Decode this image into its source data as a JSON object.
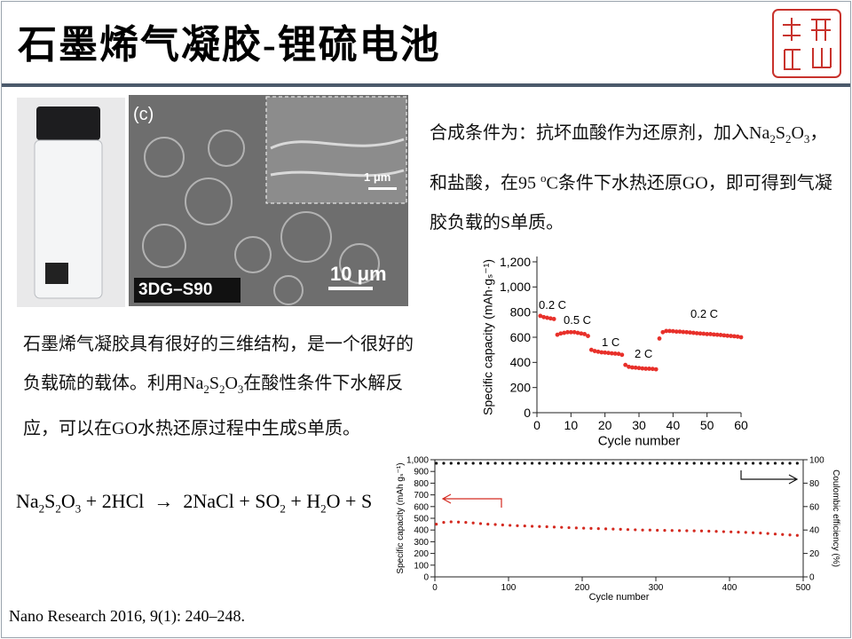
{
  "header": {
    "title": "石墨烯气凝胶-锂硫电池"
  },
  "image_labels": {
    "panel": "(c)",
    "inset_scale": "1 μm",
    "scale": "10 μm",
    "sample": "3DG–S90"
  },
  "paragraph_1": {
    "runs": [
      "合成条件为：抗坏血酸作为还原剂，加入Na",
      {
        "sub": "2"
      },
      "S",
      {
        "sub": "2"
      },
      "O",
      {
        "sub": "3"
      },
      "，和盐酸，在95 ",
      {
        "sup": "o"
      },
      "C条件下水热还原GO，即可得到气凝胶负载的S单质。"
    ]
  },
  "paragraph_2": {
    "runs": [
      "石墨烯气凝胶具有很好的三维结构，是一个很好的负载硫的载体。利用Na",
      {
        "sub": "2"
      },
      "S",
      {
        "sub": "2"
      },
      "O",
      {
        "sub": "3"
      },
      "在酸性条件下水解反应，可以在GO水热还原过程中生成S单质。"
    ]
  },
  "equation": {
    "runs": [
      "Na",
      {
        "sub": "2"
      },
      "S",
      {
        "sub": "2"
      },
      "O",
      {
        "sub": "3"
      },
      " + 2HCl  →  2NaCl + SO",
      {
        "sub": "2"
      },
      " + H",
      {
        "sub": "2"
      },
      "O + S"
    ]
  },
  "footer": {
    "citation": "Nano Research  2016, 9(1): 240–248."
  },
  "chart_data": [
    {
      "type": "scatter",
      "x_label": "Cycle number",
      "y_label": "Specific capacity (mAh·gₛ⁻¹)",
      "annotations": [
        "0.2 C",
        "0.5 C",
        "1 C",
        "2 C",
        "0.2 C"
      ],
      "x": [
        1,
        2,
        3,
        4,
        5,
        6,
        7,
        8,
        9,
        10,
        11,
        12,
        13,
        14,
        15,
        16,
        17,
        18,
        19,
        20,
        21,
        22,
        23,
        24,
        25,
        26,
        27,
        28,
        29,
        30,
        31,
        32,
        33,
        34,
        35,
        36,
        37,
        38,
        39,
        40,
        41,
        42,
        43,
        44,
        45,
        46,
        47,
        48,
        49,
        50,
        51,
        52,
        53,
        54,
        55,
        56,
        57,
        58,
        59,
        60
      ],
      "series": [
        {
          "color": "#e8302a",
          "values": [
            770,
            760,
            755,
            750,
            745,
            620,
            630,
            635,
            640,
            640,
            640,
            635,
            630,
            625,
            610,
            500,
            490,
            485,
            480,
            478,
            475,
            472,
            470,
            468,
            460,
            380,
            365,
            360,
            358,
            355,
            352,
            350,
            350,
            348,
            345,
            590,
            640,
            650,
            650,
            648,
            645,
            645,
            642,
            640,
            638,
            635,
            632,
            630,
            628,
            625,
            625,
            622,
            620,
            618,
            615,
            612,
            610,
            608,
            605,
            600
          ]
        }
      ],
      "xlim": [
        0,
        60
      ],
      "xticks": [
        0,
        10,
        20,
        30,
        40,
        50,
        60
      ],
      "ylim": [
        0,
        1200
      ],
      "yticks": [
        0,
        200,
        400,
        600,
        800,
        {
          "value": 1000,
          "label": "1,000"
        },
        {
          "value": 1200,
          "label": "1,200"
        }
      ]
    },
    {
      "type": "scatter",
      "x_label": "Cycle number",
      "y_label": "Specific capacity (mAh gₛ⁻¹)",
      "y2_label": "Coulombic efficiency (%)",
      "x": [
        2,
        12,
        22,
        32,
        42,
        52,
        62,
        72,
        82,
        92,
        102,
        112,
        122,
        132,
        142,
        152,
        162,
        172,
        182,
        192,
        202,
        212,
        222,
        232,
        242,
        252,
        262,
        272,
        282,
        292,
        302,
        312,
        322,
        332,
        342,
        352,
        362,
        372,
        382,
        392,
        402,
        412,
        422,
        432,
        442,
        452,
        462,
        472,
        482,
        492
      ],
      "series": [
        {
          "color": "#d42a20",
          "values": [
            450,
            465,
            470,
            468,
            465,
            460,
            455,
            450,
            447,
            443,
            440,
            437,
            435,
            432,
            430,
            428,
            425,
            423,
            420,
            418,
            416,
            414,
            412,
            410,
            408,
            406,
            404,
            402,
            400,
            400,
            398,
            397,
            396,
            395,
            394,
            393,
            392,
            390,
            388,
            386,
            384,
            382,
            380,
            377,
            374,
            370,
            366,
            362,
            358,
            354
          ]
        },
        {
          "color": "#111111",
          "axis": "y2",
          "values": [
            97,
            97,
            97,
            97,
            97,
            97,
            97,
            97,
            97,
            97,
            97,
            97,
            97,
            97,
            97,
            97,
            97,
            97,
            97,
            97,
            97,
            97,
            97,
            97,
            97,
            97,
            97,
            97,
            97,
            97,
            97,
            97,
            97,
            97,
            97,
            97,
            97,
            97,
            97,
            97,
            97,
            97,
            97,
            97,
            97,
            97,
            97,
            97,
            97,
            97
          ]
        }
      ],
      "xlim": [
        0,
        500
      ],
      "xticks": [
        0,
        100,
        200,
        300,
        400,
        500
      ],
      "ylim": [
        0,
        1000
      ],
      "yticks": [
        0,
        100,
        200,
        300,
        400,
        500,
        600,
        700,
        800,
        900,
        {
          "value": 1000,
          "label": "1,000"
        }
      ],
      "y2lim": [
        0,
        100
      ],
      "y2ticks": [
        0,
        20,
        40,
        60,
        80,
        100
      ]
    }
  ]
}
